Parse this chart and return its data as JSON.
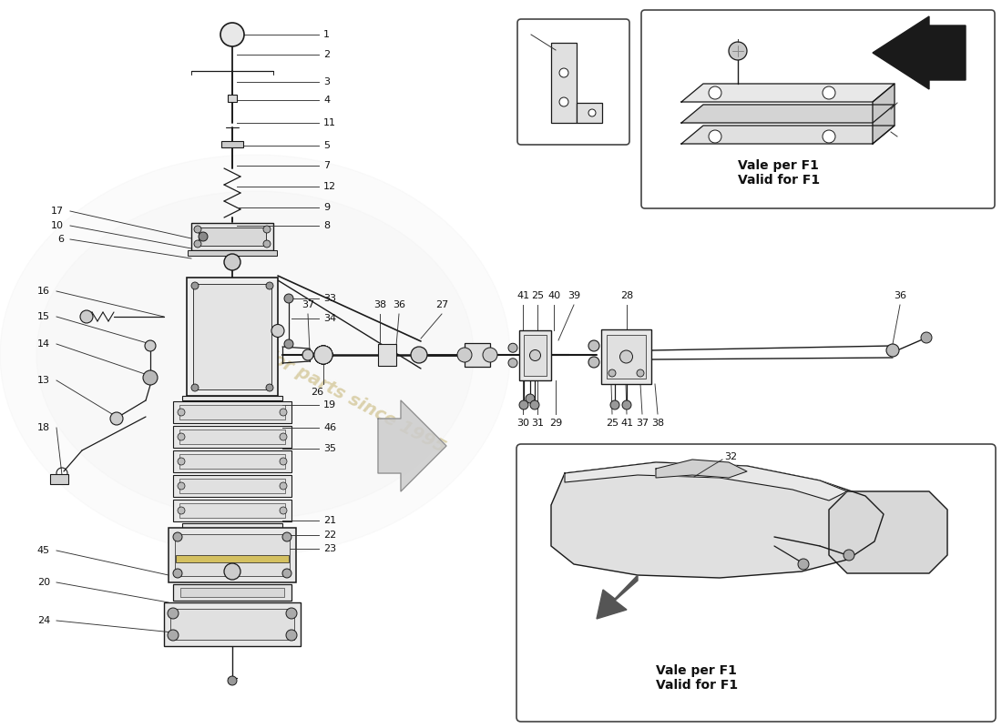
{
  "bg_color": "#ffffff",
  "line_color": "#1a1a1a",
  "watermark_color": "#c8b87a",
  "label_color": "#111111",
  "vale_text1": "Vale per F1\nValid for F1",
  "vale_text2": "Vale per F1\nValid for F1"
}
